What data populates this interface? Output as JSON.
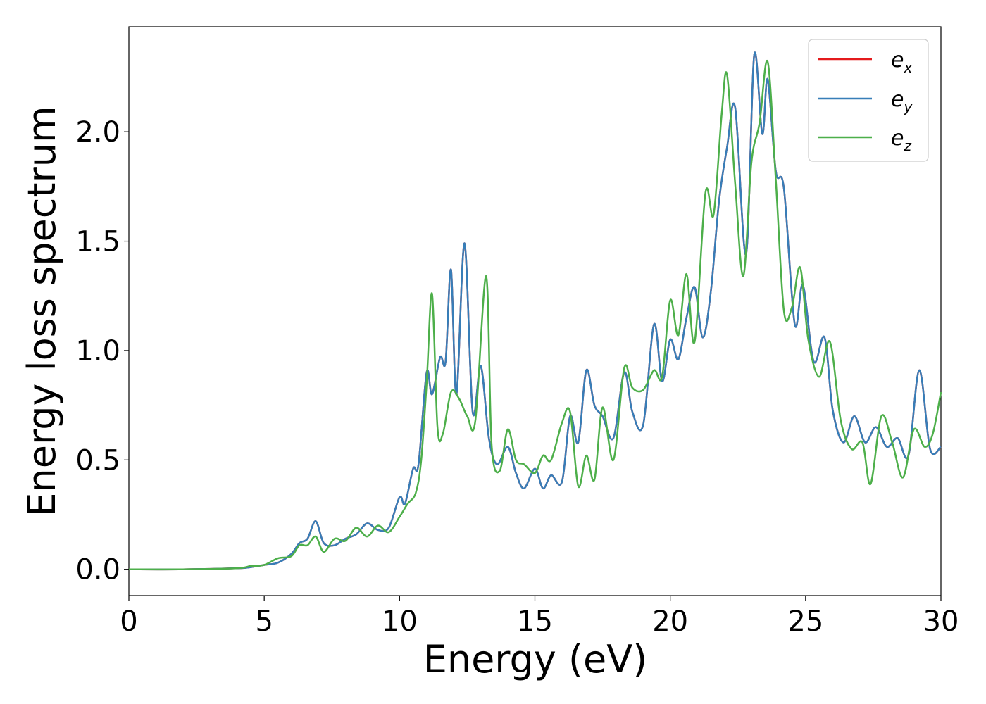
{
  "chart_data": {
    "type": "line",
    "xlabel": "Energy (eV)",
    "ylabel": "Energy loss spectrum",
    "xlim": [
      0,
      30
    ],
    "ylim": [
      -0.12,
      2.48
    ],
    "xticks": [
      "0",
      "5",
      "10",
      "15",
      "20",
      "25",
      "30"
    ],
    "yticks": [
      "0.0",
      "0.5",
      "1.0",
      "1.5",
      "2.0"
    ],
    "xtick_values": [
      0,
      5,
      10,
      15,
      20,
      25,
      30
    ],
    "ytick_values": [
      0.0,
      0.5,
      1.0,
      1.5,
      2.0
    ],
    "grid": false,
    "legend_position": "top-right",
    "series": [
      {
        "name": "e_x",
        "legend_base": "e",
        "legend_sub": "x",
        "color": "#e41a1c",
        "x": [
          0,
          2,
          4,
          4.5,
          5,
          5.5,
          6,
          6.3,
          6.6,
          6.9,
          7.2,
          7.6,
          8,
          8.4,
          8.8,
          9.2,
          9.6,
          10,
          10.2,
          10.5,
          10.7,
          11,
          11.2,
          11.5,
          11.7,
          11.9,
          12.1,
          12.4,
          12.7,
          13,
          13.3,
          13.6,
          14,
          14.3,
          14.6,
          15,
          15.3,
          15.6,
          16,
          16.3,
          16.6,
          16.9,
          17.2,
          17.5,
          17.9,
          18.3,
          18.6,
          19,
          19.4,
          19.7,
          20,
          20.3,
          20.6,
          20.9,
          21.2,
          21.5,
          21.8,
          22.1,
          22.4,
          22.8,
          23.1,
          23.4,
          23.6,
          23.9,
          24.2,
          24.6,
          24.9,
          25.3,
          25.7,
          26,
          26.4,
          26.8,
          27.2,
          27.6,
          28,
          28.4,
          28.8,
          29.2,
          29.6,
          30
        ],
        "y": [
          0.0,
          0.0,
          0.005,
          0.01,
          0.02,
          0.03,
          0.07,
          0.12,
          0.14,
          0.22,
          0.12,
          0.11,
          0.14,
          0.16,
          0.21,
          0.18,
          0.19,
          0.33,
          0.3,
          0.46,
          0.48,
          0.9,
          0.8,
          0.97,
          0.95,
          1.37,
          0.8,
          1.49,
          0.72,
          0.93,
          0.6,
          0.48,
          0.56,
          0.44,
          0.37,
          0.46,
          0.37,
          0.43,
          0.4,
          0.7,
          0.58,
          0.91,
          0.75,
          0.7,
          0.6,
          0.9,
          0.72,
          0.66,
          1.12,
          0.86,
          1.05,
          0.96,
          1.15,
          1.29,
          1.06,
          1.27,
          1.68,
          1.93,
          2.11,
          1.44,
          2.35,
          1.99,
          2.24,
          1.82,
          1.74,
          1.12,
          1.3,
          0.95,
          1.06,
          0.73,
          0.58,
          0.7,
          0.58,
          0.65,
          0.56,
          0.6,
          0.52,
          0.91,
          0.55,
          0.56
        ]
      },
      {
        "name": "e_y",
        "legend_base": "e",
        "legend_sub": "y",
        "color": "#377eb8",
        "x": [
          0,
          2,
          4,
          4.5,
          5,
          5.5,
          6,
          6.3,
          6.6,
          6.9,
          7.2,
          7.6,
          8,
          8.4,
          8.8,
          9.2,
          9.6,
          10,
          10.2,
          10.5,
          10.7,
          11,
          11.2,
          11.5,
          11.7,
          11.9,
          12.1,
          12.4,
          12.7,
          13,
          13.3,
          13.6,
          14,
          14.3,
          14.6,
          15,
          15.3,
          15.6,
          16,
          16.3,
          16.6,
          16.9,
          17.2,
          17.5,
          17.9,
          18.3,
          18.6,
          19,
          19.4,
          19.7,
          20,
          20.3,
          20.6,
          20.9,
          21.2,
          21.5,
          21.8,
          22.1,
          22.4,
          22.8,
          23.1,
          23.4,
          23.6,
          23.9,
          24.2,
          24.6,
          24.9,
          25.3,
          25.7,
          26,
          26.4,
          26.8,
          27.2,
          27.6,
          28,
          28.4,
          28.8,
          29.2,
          29.6,
          30
        ],
        "y": [
          0.0,
          0.0,
          0.005,
          0.01,
          0.02,
          0.03,
          0.07,
          0.12,
          0.14,
          0.22,
          0.12,
          0.11,
          0.14,
          0.16,
          0.21,
          0.18,
          0.19,
          0.33,
          0.3,
          0.46,
          0.48,
          0.9,
          0.8,
          0.97,
          0.95,
          1.37,
          0.8,
          1.49,
          0.72,
          0.93,
          0.6,
          0.48,
          0.56,
          0.44,
          0.37,
          0.46,
          0.37,
          0.43,
          0.4,
          0.7,
          0.58,
          0.91,
          0.75,
          0.7,
          0.6,
          0.9,
          0.72,
          0.66,
          1.12,
          0.86,
          1.05,
          0.96,
          1.15,
          1.29,
          1.06,
          1.27,
          1.68,
          1.93,
          2.11,
          1.44,
          2.35,
          1.99,
          2.24,
          1.82,
          1.74,
          1.12,
          1.3,
          0.95,
          1.06,
          0.73,
          0.58,
          0.7,
          0.58,
          0.65,
          0.56,
          0.6,
          0.52,
          0.91,
          0.55,
          0.56
        ]
      },
      {
        "name": "e_z",
        "legend_base": "e",
        "legend_sub": "z",
        "color": "#4daf4a",
        "x": [
          0,
          2,
          4,
          4.5,
          5,
          5.5,
          6,
          6.3,
          6.6,
          6.9,
          7.2,
          7.6,
          8,
          8.4,
          8.8,
          9.2,
          9.6,
          10,
          10.3,
          10.6,
          10.8,
          11,
          11.2,
          11.4,
          11.6,
          11.9,
          12.2,
          12.5,
          12.8,
          13.2,
          13.4,
          13.7,
          14,
          14.3,
          14.6,
          15,
          15.3,
          15.6,
          16,
          16.3,
          16.6,
          16.9,
          17.2,
          17.5,
          17.9,
          18.3,
          18.6,
          19,
          19.4,
          19.7,
          20,
          20.3,
          20.6,
          20.9,
          21.3,
          21.6,
          21.9,
          22.1,
          22.4,
          22.7,
          23,
          23.3,
          23.6,
          23.9,
          24.2,
          24.5,
          24.8,
          25.1,
          25.5,
          25.9,
          26.3,
          26.7,
          27.1,
          27.4,
          27.8,
          28.2,
          28.6,
          29,
          29.4,
          29.7,
          30
        ],
        "y": [
          0.0,
          0.0,
          0.005,
          0.015,
          0.02,
          0.05,
          0.06,
          0.11,
          0.11,
          0.15,
          0.08,
          0.14,
          0.13,
          0.19,
          0.15,
          0.2,
          0.17,
          0.24,
          0.3,
          0.35,
          0.5,
          0.85,
          1.26,
          0.65,
          0.62,
          0.81,
          0.78,
          0.7,
          0.68,
          1.34,
          0.57,
          0.45,
          0.64,
          0.5,
          0.48,
          0.44,
          0.52,
          0.5,
          0.67,
          0.72,
          0.38,
          0.52,
          0.41,
          0.74,
          0.5,
          0.92,
          0.83,
          0.82,
          0.91,
          0.88,
          1.23,
          1.07,
          1.35,
          1.04,
          1.72,
          1.62,
          2.08,
          2.26,
          1.76,
          1.34,
          1.86,
          2.04,
          2.32,
          1.78,
          1.18,
          1.2,
          1.38,
          1.05,
          0.88,
          1.04,
          0.68,
          0.55,
          0.58,
          0.39,
          0.7,
          0.58,
          0.42,
          0.64,
          0.56,
          0.62,
          0.81
        ]
      }
    ]
  }
}
